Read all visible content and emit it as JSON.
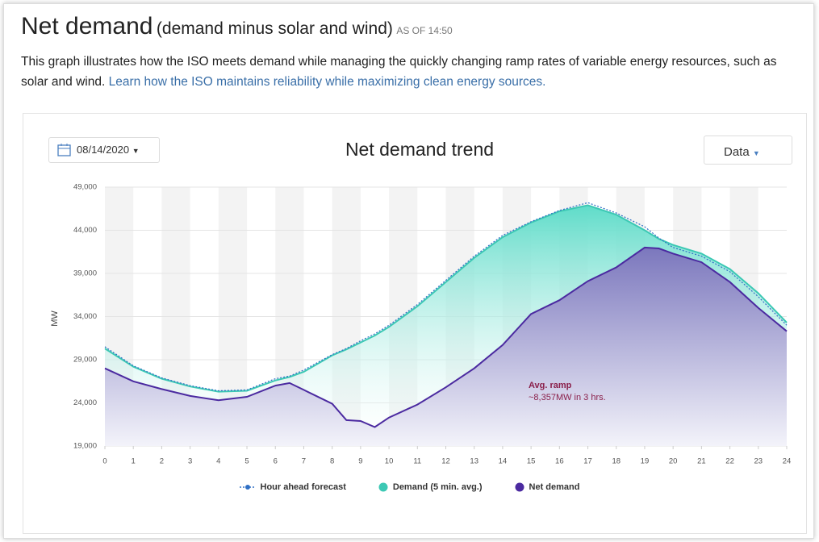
{
  "header": {
    "title": "Net demand",
    "subtitle": "(demand minus solar and wind)",
    "as_of": "AS OF 14:50",
    "description": "This graph illustrates how the ISO meets demand while managing the quickly changing ramp rates of variable energy resources, such as solar and wind.",
    "link": "Learn how the ISO maintains reliability while maximizing clean energy sources."
  },
  "controls": {
    "date": "08/14/2020",
    "data_button": "Data"
  },
  "chart_data": {
    "type": "line",
    "title": "Net demand trend",
    "y_label": "MW",
    "x": [
      0,
      1,
      2,
      3,
      4,
      5,
      6,
      6.5,
      7,
      8,
      8.5,
      9,
      9.5,
      10,
      11,
      12,
      13,
      14,
      15,
      16,
      17,
      18,
      19,
      19.5,
      20,
      21,
      22,
      23,
      24
    ],
    "xlim": [
      0,
      24
    ],
    "xticks": [
      0,
      1,
      2,
      3,
      4,
      5,
      6,
      7,
      8,
      9,
      10,
      11,
      12,
      13,
      14,
      15,
      16,
      17,
      18,
      19,
      20,
      21,
      22,
      23,
      24
    ],
    "ylim": [
      19000,
      49000
    ],
    "yticks": [
      {
        "value": 19000,
        "label": "19,000"
      },
      {
        "value": 24000,
        "label": "24,000"
      },
      {
        "value": 29000,
        "label": "29,000"
      },
      {
        "value": 34000,
        "label": "34,000"
      },
      {
        "value": 39000,
        "label": "39,000"
      },
      {
        "value": 44000,
        "label": "44,000"
      },
      {
        "value": 49000,
        "label": "49,000"
      }
    ],
    "grid": true,
    "series": [
      {
        "name": "Hour ahead forecast",
        "color": "#2f6fc4",
        "values": [
          30500,
          28300,
          26900,
          26000,
          25400,
          25500,
          26800,
          27100,
          27800,
          29600,
          30300,
          31200,
          32000,
          33000,
          35400,
          38200,
          41000,
          43400,
          45000,
          46300,
          47200,
          46000,
          44400,
          43100,
          42000,
          41000,
          39200,
          36300,
          33000
        ]
      },
      {
        "name": "Demand (5 min. avg.)",
        "color": "#3cc8b4",
        "values": [
          30300,
          28200,
          26800,
          25900,
          25300,
          25400,
          26600,
          27000,
          27600,
          29500,
          30200,
          31000,
          31800,
          32800,
          35200,
          38000,
          40800,
          43200,
          44900,
          46200,
          46900,
          45800,
          44000,
          43000,
          42300,
          41300,
          39500,
          36700,
          33300
        ]
      },
      {
        "name": "Net demand",
        "color": "#4b2aa0",
        "values": [
          28000,
          26500,
          25600,
          24800,
          24300,
          24700,
          26000,
          26300,
          25500,
          23900,
          22000,
          21900,
          21200,
          22300,
          23800,
          25800,
          28000,
          30700,
          34300,
          35900,
          38100,
          39700,
          42000,
          41900,
          41300,
          40300,
          38000,
          35000,
          32300
        ]
      }
    ],
    "annotation": {
      "title": "Avg. ramp",
      "text": "~8,357MW in 3 hrs."
    }
  }
}
